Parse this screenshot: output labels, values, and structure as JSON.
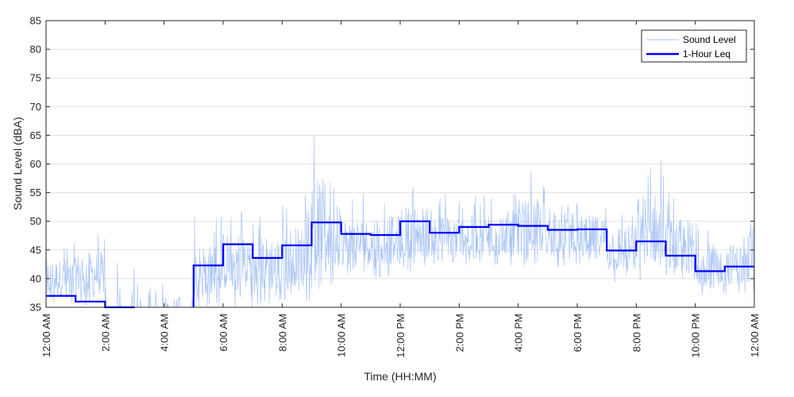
{
  "chart_data": {
    "type": "line",
    "title": "",
    "xlabel": "Time (HH:MM)",
    "ylabel": "Sound Level (dBA)",
    "ylim": [
      35,
      85
    ],
    "yticks": [
      35,
      40,
      45,
      50,
      55,
      60,
      65,
      70,
      75,
      80,
      85
    ],
    "xlim": [
      "12:00 AM",
      "12:00 AM"
    ],
    "xticks": [
      "12:00 AM",
      "2:00 AM",
      "4:00 AM",
      "6:00 AM",
      "8:00 AM",
      "10:00 AM",
      "12:00 PM",
      "2:00 PM",
      "4:00 PM",
      "6:00 PM",
      "8:00 PM",
      "10:00 PM",
      "12:00 AM"
    ],
    "grid": "horizontal",
    "legend_position": "top-right",
    "colors": {
      "sound_level": "#a9c4f5",
      "leq": "#0000ff",
      "grid": "#e0e0e0",
      "axis": "#262626"
    },
    "series": [
      {
        "name": "Sound Level",
        "style": "thin line, dense fluctuations",
        "approx_hourly_envelope": [
          {
            "hour": "12:00 AM",
            "min": 35,
            "max": 47
          },
          {
            "hour": "1:00 AM",
            "min": 35,
            "max": 49
          },
          {
            "hour": "2:00 AM",
            "min": 35,
            "max": 43
          },
          {
            "hour": "3:00 AM",
            "min": 35,
            "max": 41
          },
          {
            "hour": "4:00 AM",
            "min": 35,
            "max": 38
          },
          {
            "hour": "5:00 AM",
            "min": 35,
            "max": 51
          },
          {
            "hour": "6:00 AM",
            "min": 35,
            "max": 54
          },
          {
            "hour": "7:00 AM",
            "min": 35,
            "max": 53
          },
          {
            "hour": "8:00 AM",
            "min": 36,
            "max": 55
          },
          {
            "hour": "9:00 AM",
            "min": 38,
            "max": 66
          },
          {
            "hour": "10:00 AM",
            "min": 40,
            "max": 55
          },
          {
            "hour": "11:00 AM",
            "min": 40,
            "max": 56
          },
          {
            "hour": "12:00 PM",
            "min": 41,
            "max": 58
          },
          {
            "hour": "1:00 PM",
            "min": 42,
            "max": 55
          },
          {
            "hour": "2:00 PM",
            "min": 42,
            "max": 55
          },
          {
            "hour": "3:00 PM",
            "min": 42,
            "max": 56
          },
          {
            "hour": "4:00 PM",
            "min": 42,
            "max": 59
          },
          {
            "hour": "5:00 PM",
            "min": 42,
            "max": 58
          },
          {
            "hour": "6:00 PM",
            "min": 42,
            "max": 55
          },
          {
            "hour": "7:00 PM",
            "min": 39,
            "max": 54
          },
          {
            "hour": "8:00 PM",
            "min": 39,
            "max": 62
          },
          {
            "hour": "9:00 PM",
            "min": 38,
            "max": 56
          },
          {
            "hour": "10:00 PM",
            "min": 37,
            "max": 50
          },
          {
            "hour": "11:00 PM",
            "min": 37,
            "max": 50
          }
        ]
      },
      {
        "name": "1-Hour Leq",
        "style": "step",
        "hours": [
          "12:00 AM",
          "1:00 AM",
          "2:00 AM",
          "3:00 AM",
          "4:00 AM",
          "5:00 AM",
          "6:00 AM",
          "7:00 AM",
          "8:00 AM",
          "9:00 AM",
          "10:00 AM",
          "11:00 AM",
          "12:00 PM",
          "1:00 PM",
          "2:00 PM",
          "3:00 PM",
          "4:00 PM",
          "5:00 PM",
          "6:00 PM",
          "7:00 PM",
          "8:00 PM",
          "9:00 PM",
          "10:00 PM",
          "11:00 PM"
        ],
        "values": [
          37.0,
          36.0,
          35.0,
          null,
          null,
          42.3,
          46.0,
          43.6,
          45.8,
          49.8,
          47.8,
          47.6,
          50.0,
          48.0,
          49.0,
          49.4,
          49.2,
          48.5,
          48.6,
          44.9,
          46.5,
          44.0,
          41.3,
          42.1
        ]
      }
    ]
  }
}
